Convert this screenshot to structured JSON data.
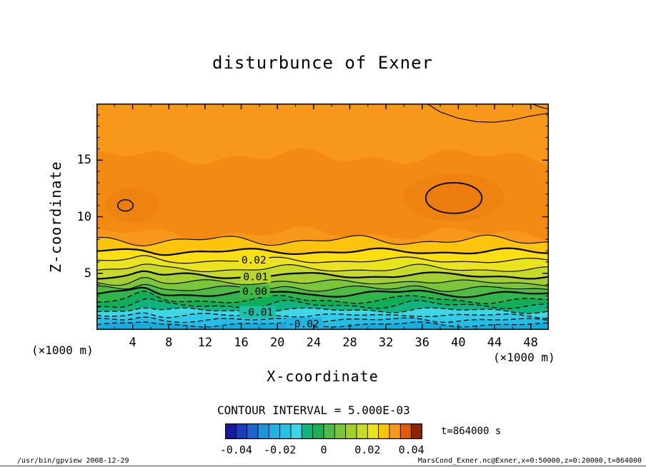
{
  "chart_data": {
    "type": "filled_contour",
    "title": "disturbunce of Exner",
    "xlabel": "X-coordinate",
    "ylabel": "Z-coordinate",
    "x_unit_left": "(×1000 m)",
    "x_unit_right": "(×1000 m)",
    "x_range": [
      0,
      50
    ],
    "x_ticks": [
      4,
      8,
      12,
      16,
      20,
      24,
      28,
      32,
      36,
      40,
      44,
      48
    ],
    "z_range": [
      0,
      20
    ],
    "z_ticks": [
      5,
      10,
      15
    ],
    "contour_interval_label": "CONTOUR INTERVAL = 5.000E-03",
    "time_label": "t=864000 s",
    "footer_left": "/usr/bin/gpview  2008-12-29",
    "footer_right": "MarsCond_Exner.nc@Exner,x=0:50000,z=0:20000,t=864000",
    "contour_levels_labeled": [
      "-0.02",
      "-0.01",
      "0.00",
      "0.01",
      "0.02"
    ],
    "levels": [
      {
        "z": 0.45,
        "style": "dashed",
        "width": 1.3,
        "amp": 0.12,
        "bump": 0.22,
        "label": "-0.02",
        "label_x": 22.9,
        "label_bg": "#20B4E2"
      },
      {
        "z": 0.85,
        "style": "dashed",
        "width": 1.3,
        "amp": 0.13,
        "bump": 0.28
      },
      {
        "z": 1.25,
        "style": "dashed",
        "width": 1.3,
        "amp": 0.15,
        "bump": 0.34
      },
      {
        "z": 1.7,
        "style": "dashed",
        "width": 1.3,
        "amp": 0.16,
        "bump": 0.42,
        "label": "-0.01",
        "label_x": 17.8,
        "label_bg": "#1EBFA6"
      },
      {
        "z": 2.15,
        "style": "dashed",
        "width": 1.3,
        "amp": 0.17,
        "bump": 0.48
      },
      {
        "z": 2.6,
        "style": "dashed",
        "width": 1.3,
        "amp": 0.18,
        "bump": 0.54
      },
      {
        "z": 3.15,
        "style": "solid",
        "width": 2.2,
        "amp": 0.18,
        "bump": 0.6,
        "label": "0.00",
        "label_x": 17.5,
        "label_bg": "#42B845"
      },
      {
        "z": 3.6,
        "style": "solid",
        "width": 1.1,
        "amp": 0.18,
        "bump": 0.6
      },
      {
        "z": 4.15,
        "style": "solid",
        "width": 1.1,
        "amp": 0.18,
        "bump": 0.55
      },
      {
        "z": 4.75,
        "style": "solid",
        "width": 2.2,
        "amp": 0.17,
        "bump": 0.48,
        "label": "0.01",
        "label_x": 17.6,
        "label_bg": "#B8D42E"
      },
      {
        "z": 5.35,
        "style": "solid",
        "width": 1.1,
        "amp": 0.16,
        "bump": 0.38
      },
      {
        "z": 6.1,
        "style": "solid",
        "width": 1.2,
        "amp": 0.15,
        "bump": 0.28,
        "label": "0.02",
        "label_x": 17.4,
        "label_bg": "#F2E117"
      },
      {
        "z": 6.9,
        "style": "solid",
        "width": 2.2,
        "amp": 0.2,
        "bump": 0.14
      },
      {
        "z": 7.9,
        "style": "solid",
        "width": 1.1,
        "amp": 0.3,
        "bump": 0.0
      }
    ],
    "band_colors": [
      "#17ACDE",
      "#25BCE5",
      "#30CBE9",
      "#3FD7E6",
      "#12B47E",
      "#10AE58",
      "#2FB54B",
      "#4FBB44",
      "#7AC53C",
      "#A4CF33",
      "#C9D929",
      "#EBE31E",
      "#FBDF10",
      "#FDC40D",
      "#F8981B"
    ],
    "mid_band": {
      "z_low": 8.5,
      "z_high": 15.3,
      "color": "#F28A14"
    },
    "inner_patches": [
      {
        "cx": 39.5,
        "cz": 11.7,
        "rx": 5.6,
        "rz": 2.1
      },
      {
        "cx": 4.0,
        "cz": 11.0,
        "rx": 3.0,
        "rz": 1.5
      }
    ],
    "patch_color": "#EF8311",
    "blobs": [
      {
        "cx": 39.5,
        "cz": 11.65,
        "rx": 3.1,
        "rz": 1.35,
        "lw": 1.8
      },
      {
        "cx": 3.2,
        "cz": 11.0,
        "rx": 0.85,
        "rz": 0.5,
        "lw": 1.5
      }
    ],
    "blob_fill": "#EC7D0E",
    "top_right_contour": [
      [
        36.3,
        20.1
      ],
      [
        38,
        19.25
      ],
      [
        40,
        18.7
      ],
      [
        42,
        18.4
      ],
      [
        44,
        18.35
      ],
      [
        46,
        18.55
      ],
      [
        48,
        18.9
      ],
      [
        50.3,
        19.2
      ]
    ],
    "corner_contour": [
      [
        47.8,
        20.1
      ],
      [
        49,
        19.7
      ],
      [
        50.3,
        19.45
      ]
    ],
    "colorbar": {
      "min": -0.045,
      "max": 0.045,
      "cell_colors": [
        "#151B9E",
        "#1A3DBE",
        "#1E64D0",
        "#2193DC",
        "#24B2E2",
        "#27C0E7",
        "#3CD6E5",
        "#12B47E",
        "#1FAE54",
        "#4FBB44",
        "#7AC53C",
        "#A4CF33",
        "#C9D929",
        "#EDE31D",
        "#FDC40D",
        "#F8981B",
        "#E05A07",
        "#8E2405"
      ],
      "ticks": [
        {
          "value": -0.04,
          "label": "-0.04"
        },
        {
          "value": -0.02,
          "label": "-0.02"
        },
        {
          "value": 0,
          "label": "0"
        },
        {
          "value": 0.02,
          "label": "0.02"
        },
        {
          "value": 0.04,
          "label": "0.04"
        }
      ]
    }
  }
}
